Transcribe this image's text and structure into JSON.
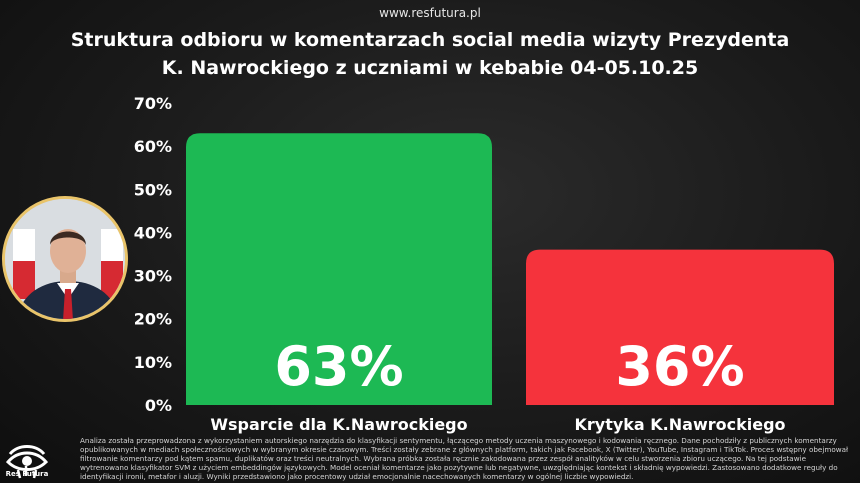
{
  "site": "www.resfutura.pl",
  "title_line1": "Struktura odbioru w komentarzach social media wizyty Prezydenta",
  "title_line2": "K. Nawrockiego z uczniami w kebabie 04-05.10.25",
  "colors": {
    "support": "#1db954",
    "critique": "#f5333c"
  },
  "logo_text": "Res Futura",
  "footnote": "Analiza została przeprowadzona z wykorzystaniem autorskiego narzędzia do klasyfikacji sentymentu, łączącego metody uczenia maszynowego i kodowania ręcznego. Dane pochodziły z publicznych komentarzy opublikowanych w mediach społecznościowych w wybranym okresie czasowym. Treści zostały zebrane z głównych platform, takich jak Facebook, X (Twitter), YouTube, Instagram i TikTok. Proces wstępny obejmował filtrowanie komentarzy pod kątem spamu, duplikatów oraz treści neutralnych. Wybrana próbka została ręcznie zakodowana przez zespół analityków w celu stworzenia zbioru uczącego. Na tej podstawie wytrenowano klasyfikator SVM z użyciem embeddingów językowych. Model oceniał komentarze jako pozytywne lub negatywne, uwzględniając kontekst i składnię wypowiedzi. Zastosowano dodatkowe reguły do identyfikacji ironii, metafor i aluzji. Wyniki przedstawiono jako procentowy udział emocjonalnie nacechowanych komentarzy w ogólnej liczbie wypowiedzi.",
  "chart_data": {
    "type": "bar",
    "categories": [
      "Wsparcie dla K.Nawrockiego",
      "Krytyka K.Nawrockiego"
    ],
    "values": [
      63,
      36
    ],
    "value_labels": [
      "63%",
      "36%"
    ],
    "yticks": [
      "0%",
      "10%",
      "20%",
      "30%",
      "40%",
      "50%",
      "60%",
      "70%"
    ],
    "ylim": [
      0,
      70
    ],
    "grid": false,
    "legend": "none"
  }
}
